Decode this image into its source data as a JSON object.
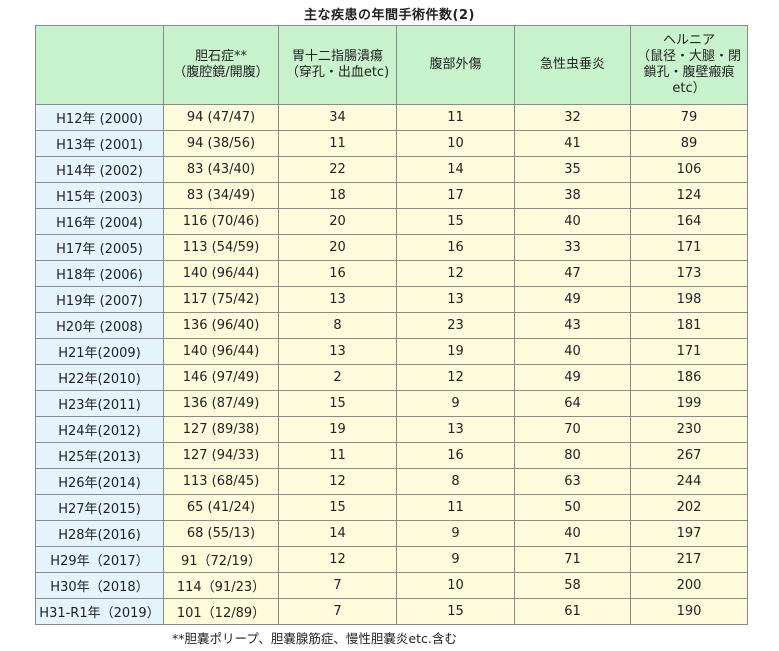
{
  "title": "主な疾患の年間手術件数(2)",
  "headers": [
    {
      "lines": [
        "",
        ""
      ]
    },
    {
      "lines": [
        "胆石症**",
        "（腹腔鏡/開腹）"
      ]
    },
    {
      "lines": [
        "胃十二指腸潰瘍",
        "（穿孔・出血etc)"
      ]
    },
    {
      "lines": [
        "腹部外傷",
        ""
      ]
    },
    {
      "lines": [
        "急性虫垂炎",
        ""
      ]
    },
    {
      "lines": [
        "ヘルニア",
        "（鼠径・大腿・閉",
        "鎖孔・腹壁瘢痕",
        "etc）"
      ]
    }
  ],
  "rows": [
    [
      "H12年 (2000)",
      "94 (47/47)",
      "34",
      "11",
      "32",
      "79"
    ],
    [
      "H13年 (2001)",
      "94 (38/56)",
      "11",
      "10",
      "41",
      "89"
    ],
    [
      "H14年 (2002)",
      "83 (43/40)",
      "22",
      "14",
      "35",
      "106"
    ],
    [
      "H15年 (2003)",
      "83 (34/49)",
      "18",
      "17",
      "38",
      "124"
    ],
    [
      "H16年 (2004)",
      "116 (70/46)",
      "20",
      "15",
      "40",
      "164"
    ],
    [
      "H17年 (2005)",
      "113 (54/59)",
      "20",
      "16",
      "33",
      "171"
    ],
    [
      "H18年 (2006)",
      "140 (96/44)",
      "16",
      "12",
      "47",
      "173"
    ],
    [
      "H19年 (2007)",
      "117 (75/42)",
      "13",
      "13",
      "49",
      "198"
    ],
    [
      "H20年 (2008)",
      "136 (96/40)",
      "8",
      "23",
      "43",
      "181"
    ],
    [
      "H21年(2009)",
      "140 (96/44)",
      "13",
      "19",
      "40",
      "171"
    ],
    [
      "H22年(2010)",
      "146 (97/49)",
      "2",
      "12",
      "49",
      "186"
    ],
    [
      "H23年(2011)",
      "136 (87/49)",
      "15",
      "9",
      "64",
      "199"
    ],
    [
      "H24年(2012)",
      "127 (89/38)",
      "19",
      "13",
      "70",
      "230"
    ],
    [
      "H25年(2013)",
      "127 (94/33)",
      "11",
      "16",
      "80",
      "267"
    ],
    [
      "H26年(2014)",
      "113 (68/45)",
      "12",
      "8",
      "63",
      "244"
    ],
    [
      "H27年(2015)",
      "65 (41/24)",
      "15",
      "11",
      "50",
      "202"
    ],
    [
      "H28年(2016)",
      "68 (55/13)",
      "14",
      "9",
      "40",
      "197"
    ],
    [
      "H29年（2017）",
      "91（72/19）",
      "12",
      "9",
      "71",
      "217"
    ],
    [
      "H30年（2018）",
      "114（91/23）",
      "7",
      "10",
      "58",
      "200"
    ],
    [
      "H31-R1年（2019）",
      "101（12/89）",
      "7",
      "15",
      "61",
      "190"
    ]
  ],
  "footnote": "**胆嚢ポリープ、胆嚢腺筋症、慢性胆嚢炎etc.含む",
  "colors": {
    "header_bg": "#c8f2cc",
    "year_bg": "#e4f4fa",
    "cell_bg": "#fdfbdc",
    "border": "#8a8a8a"
  }
}
